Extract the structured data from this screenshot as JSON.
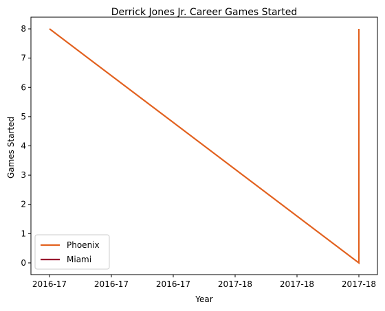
{
  "chart_data": {
    "type": "line",
    "title": "Derrick Jones Jr. Career Games Started",
    "xlabel": "Year",
    "ylabel": "Games Started",
    "x_tick_labels": [
      "2016-17",
      "2016-17",
      "2016-17",
      "2017-18",
      "2017-18",
      "2017-18"
    ],
    "x_ticks": [
      0,
      0.2,
      0.4,
      0.6,
      0.8,
      1.0
    ],
    "xlim": [
      -0.06,
      1.06
    ],
    "ylim": [
      -0.4,
      8.4
    ],
    "y_ticks": [
      0,
      1,
      2,
      3,
      4,
      5,
      6,
      7,
      8
    ],
    "grid": false,
    "legend_position": "lower-left",
    "series": [
      {
        "name": "Phoenix",
        "color": "#E2611F",
        "x": [
          0,
          1.0,
          1.0
        ],
        "y": [
          8,
          0,
          8
        ]
      },
      {
        "name": "Miami",
        "color": "#98002E",
        "x": [],
        "y": []
      }
    ]
  }
}
